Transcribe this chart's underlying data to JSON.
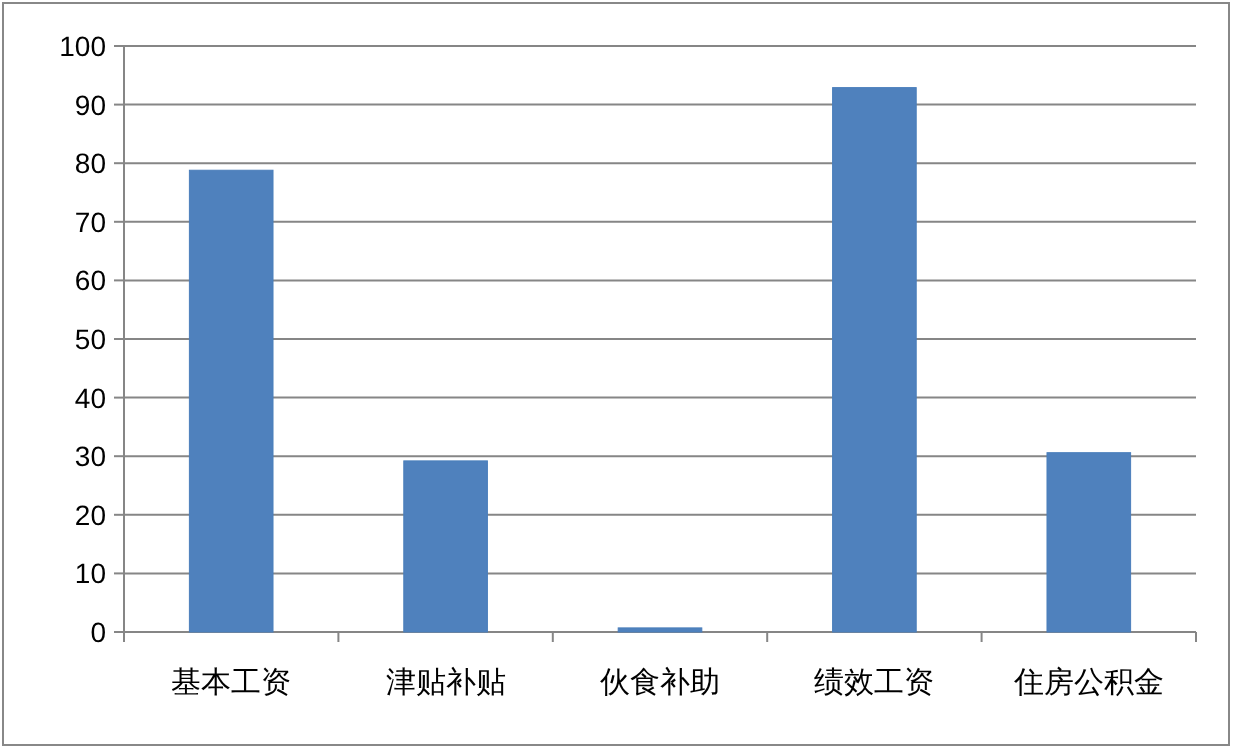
{
  "chart_data": {
    "type": "bar",
    "categories": [
      "基本工资",
      "津贴补贴",
      "伙食补助",
      "绩效工资",
      "住房公积金"
    ],
    "values": [
      78.8,
      29.2,
      0.7,
      92.9,
      30.6
    ],
    "color": "#4f81bd",
    "ylim": [
      0,
      100
    ],
    "yticks": [
      0,
      10,
      20,
      30,
      40,
      50,
      60,
      70,
      80,
      90,
      100
    ],
    "grid": "y"
  }
}
